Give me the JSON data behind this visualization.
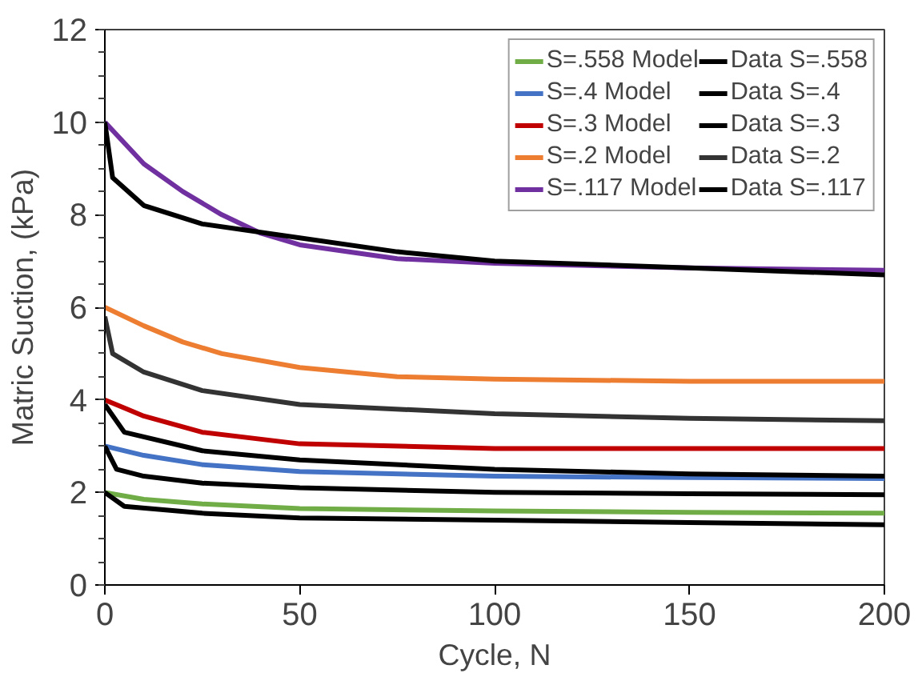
{
  "chart_data": {
    "type": "line",
    "xlabel": "Cycle, N",
    "ylabel": "Matric Suction, (kPa)",
    "xlim": [
      0,
      200
    ],
    "xticks": [
      0,
      50,
      100,
      150,
      200
    ],
    "ylim": [
      0,
      12
    ],
    "yticks": [
      0,
      2,
      4,
      6,
      8,
      10,
      12
    ],
    "grid": false,
    "legend": "top right",
    "marker": "none",
    "line_style": "solid",
    "series": [
      {
        "name": "S=.558 Model",
        "color": "#70ad47",
        "x": [
          0,
          10,
          25,
          50,
          100,
          150,
          200
        ],
        "values": [
          2.0,
          1.85,
          1.75,
          1.65,
          1.6,
          1.57,
          1.55
        ]
      },
      {
        "name": "S=.4 Model",
        "color": "#4472c4",
        "x": [
          0,
          10,
          25,
          50,
          100,
          150,
          200
        ],
        "values": [
          3.0,
          2.8,
          2.6,
          2.45,
          2.35,
          2.32,
          2.3
        ]
      },
      {
        "name": "S=.3 Model",
        "color": "#c00000",
        "x": [
          0,
          10,
          25,
          50,
          100,
          150,
          200
        ],
        "values": [
          4.0,
          3.65,
          3.3,
          3.05,
          2.95,
          2.95,
          2.95
        ]
      },
      {
        "name": "S=.2 Model",
        "color": "#ed7d31",
        "x": [
          0,
          10,
          20,
          30,
          50,
          75,
          100,
          150,
          200
        ],
        "values": [
          6.0,
          5.6,
          5.25,
          5.0,
          4.7,
          4.5,
          4.45,
          4.4,
          4.4
        ]
      },
      {
        "name": "S=.117 Model",
        "color": "#7030a0",
        "x": [
          0,
          10,
          20,
          30,
          40,
          50,
          75,
          100,
          150,
          200
        ],
        "values": [
          10.0,
          9.1,
          8.5,
          8.0,
          7.6,
          7.35,
          7.05,
          6.95,
          6.85,
          6.8
        ]
      },
      {
        "name": "Data S=.558",
        "color": "#000000",
        "x": [
          0,
          5,
          25,
          50,
          100,
          150,
          200
        ],
        "values": [
          2.0,
          1.7,
          1.55,
          1.45,
          1.4,
          1.35,
          1.3
        ]
      },
      {
        "name": "Data S=.4",
        "color": "#000000",
        "x": [
          0,
          3,
          10,
          25,
          50,
          100,
          150,
          200
        ],
        "values": [
          3.0,
          2.5,
          2.35,
          2.2,
          2.1,
          2.0,
          1.97,
          1.95
        ]
      },
      {
        "name": "Data S=.3",
        "color": "#000000",
        "x": [
          0,
          5,
          25,
          50,
          100,
          150,
          200
        ],
        "values": [
          3.9,
          3.3,
          2.9,
          2.7,
          2.5,
          2.4,
          2.35
        ]
      },
      {
        "name": "Data S=.2",
        "color": "#333333",
        "x": [
          0,
          2,
          10,
          25,
          50,
          100,
          150,
          200
        ],
        "values": [
          5.8,
          5.0,
          4.6,
          4.2,
          3.9,
          3.7,
          3.6,
          3.55
        ]
      },
      {
        "name": "Data S=.117",
        "color": "#000000",
        "x": [
          0,
          2,
          10,
          25,
          50,
          75,
          100,
          150,
          200
        ],
        "values": [
          10.0,
          8.8,
          8.2,
          7.8,
          7.5,
          7.2,
          7.0,
          6.85,
          6.7
        ]
      }
    ]
  }
}
